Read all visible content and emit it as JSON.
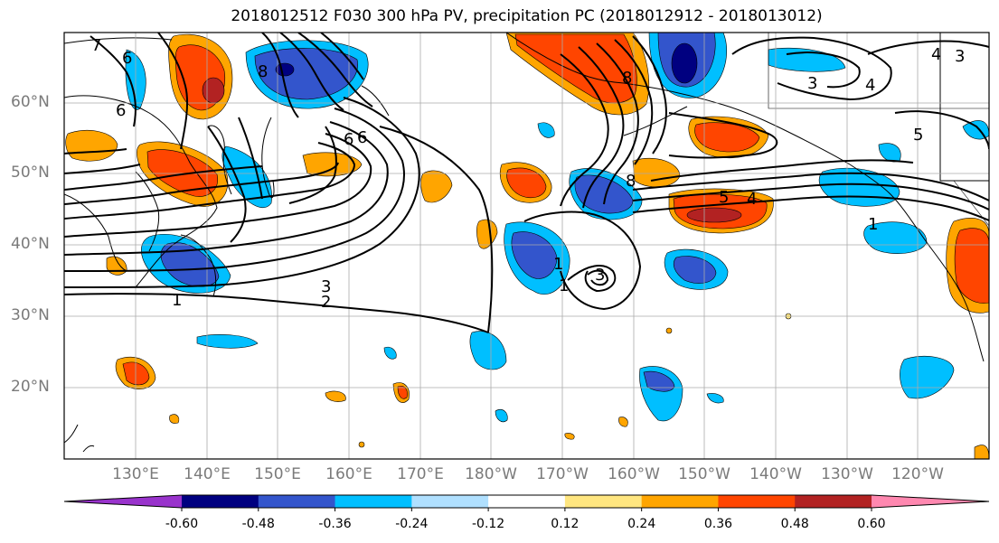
{
  "title": "2018012512 F030 300 hPa PV, precipitation PC (2018012912 - 2018013012)",
  "latitude_labels": [
    "60°N",
    "50°N",
    "40°N",
    "30°N",
    "20°N"
  ],
  "longitude_labels": [
    "130°E",
    "140°E",
    "150°E",
    "160°E",
    "170°E",
    "180°W",
    "170°W",
    "160°W",
    "150°W",
    "140°W",
    "130°W",
    "120°W"
  ],
  "pv_contour_labels": [
    "7",
    "6",
    "6",
    "8",
    "6",
    "6",
    "3",
    "2",
    "1",
    "1",
    "3",
    "1",
    "8",
    "8",
    "5",
    "4",
    "3",
    "4",
    "5",
    "4",
    "3",
    "1"
  ],
  "colorbar": {
    "ticks": [
      "-0.60",
      "-0.48",
      "-0.36",
      "-0.24",
      "-0.12",
      "0.12",
      "0.24",
      "0.36",
      "0.48",
      "0.60"
    ],
    "colors": [
      "#9933cc",
      "#000080",
      "#3355cc",
      "#00bfff",
      "#b0e0ff",
      "#ffffff",
      "#ffe680",
      "#ffa500",
      "#ff4500",
      "#b22222",
      "#ff88b0"
    ],
    "extend": "both"
  }
}
